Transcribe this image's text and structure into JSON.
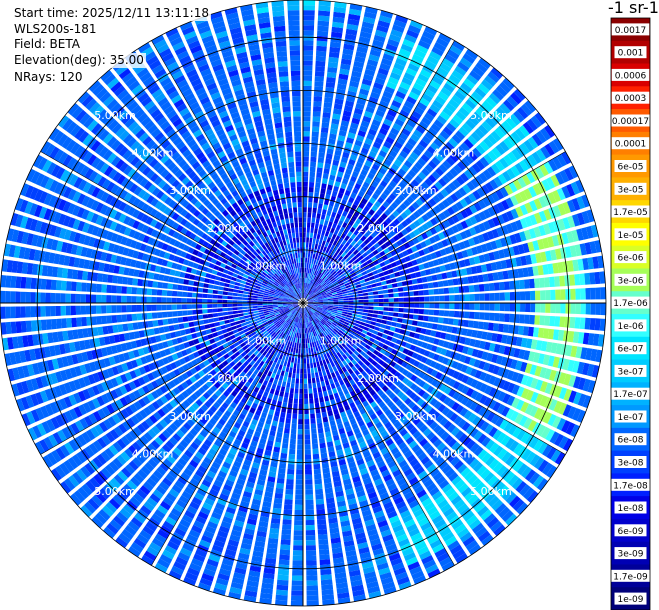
{
  "info": {
    "start_time": "Start time: 2025/12/11 13:11:18",
    "instrument": "WLS200s-181",
    "field": "Field: BETA",
    "elevation": "Elevation(deg): 35.00",
    "nrays": "NRays: 120"
  },
  "colorbar": {
    "title": "-1 sr-1",
    "levels": [
      "0.0017",
      "0.001",
      "0.0006",
      "0.0003",
      "0.00017",
      "0.0001",
      "6e-05",
      "3e-05",
      "1.7e-05",
      "1e-05",
      "6e-06",
      "3e-06",
      "1.7e-06",
      "1e-06",
      "6e-07",
      "3e-07",
      "1.7e-07",
      "1e-07",
      "6e-08",
      "3e-08",
      "1.7e-08",
      "1e-08",
      "6e-09",
      "3e-09",
      "1.7e-09",
      "1e-09"
    ],
    "colors": [
      "#8b0000",
      "#b20000",
      "#d90000",
      "#ff2000",
      "#ff5a00",
      "#ff7f00",
      "#ff9900",
      "#ffb000",
      "#ffd700",
      "#ffff00",
      "#d9ff26",
      "#a6ff59",
      "#66ffcc",
      "#33ffff",
      "#00e5ff",
      "#00ccff",
      "#00b2ff",
      "#0099ff",
      "#0066ff",
      "#0040ff",
      "#0020ff",
      "#0000e6",
      "#0000cc",
      "#0000b3",
      "#000099",
      "#00007a"
    ]
  },
  "chart_data": {
    "type": "heatmap",
    "projection": "polar-ppi",
    "field": "BETA",
    "elevation_deg": 35.0,
    "n_rays": 120,
    "range_rings_km": [
      1,
      2,
      3,
      4,
      5
    ],
    "ring_labels": [
      "1.00km",
      "2.00km",
      "3.00km",
      "4.00km",
      "5.00km"
    ],
    "max_range_km": 5.7,
    "dominant_range": [
      "1e-08",
      "1.7e-07"
    ],
    "features": [
      {
        "description_value": "1e-06 to 1e-05",
        "azimuth_deg": [
          20,
          160
        ],
        "range_km": [
          4.4,
          5.3
        ]
      },
      {
        "description_value": "1e-06",
        "azimuth_deg": [
          -10,
          10
        ],
        "range_km": [
          5.5,
          5.7
        ]
      }
    ]
  }
}
